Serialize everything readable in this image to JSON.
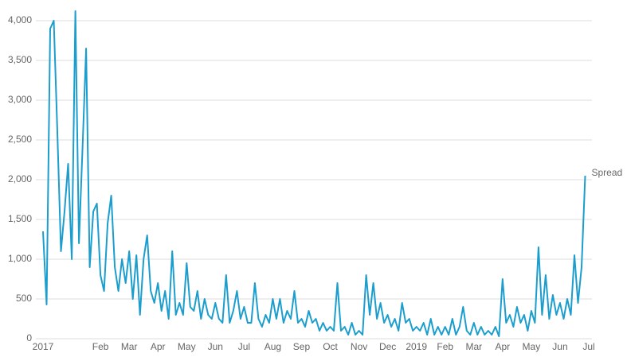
{
  "chart_data": {
    "type": "line",
    "categories": [
      "2017",
      null,
      null,
      null,
      null,
      null,
      null,
      null,
      null,
      null,
      null,
      null,
      null,
      null,
      null,
      null,
      "Feb",
      null,
      null,
      null,
      null,
      null,
      null,
      null,
      "Mar",
      null,
      null,
      null,
      null,
      null,
      null,
      null,
      "Apr",
      null,
      null,
      null,
      null,
      null,
      null,
      null,
      "May",
      null,
      null,
      null,
      null,
      null,
      null,
      null,
      "Jun",
      null,
      null,
      null,
      null,
      null,
      null,
      null,
      "Jul",
      null,
      null,
      null,
      null,
      null,
      null,
      null,
      "Aug",
      null,
      null,
      null,
      null,
      null,
      null,
      null,
      "Sep",
      null,
      null,
      null,
      null,
      null,
      null,
      null,
      "Oct",
      null,
      null,
      null,
      null,
      null,
      null,
      null,
      "Nov",
      null,
      null,
      null,
      null,
      null,
      null,
      null,
      "Dec",
      null,
      null,
      null,
      null,
      null,
      null,
      null,
      "2019",
      null,
      null,
      null,
      null,
      null,
      null,
      null,
      "Feb",
      null,
      null,
      null,
      null,
      null,
      null,
      null,
      "Mar",
      null,
      null,
      null,
      null,
      null,
      null,
      null,
      "Apr",
      null,
      null,
      null,
      null,
      null,
      null,
      null,
      "May",
      null,
      null,
      null,
      null,
      null,
      null,
      null,
      "Jun",
      null,
      null,
      null,
      null,
      null,
      null,
      null,
      "Jul"
    ],
    "series": [
      {
        "name": "Spread",
        "color": "#1b9ece",
        "values": [
          1350,
          430,
          3900,
          4000,
          2600,
          1100,
          1600,
          2200,
          1000,
          4120,
          1200,
          2400,
          3650,
          900,
          1600,
          1700,
          800,
          600,
          1450,
          1800,
          900,
          600,
          1000,
          700,
          1100,
          500,
          1050,
          300,
          1000,
          1300,
          600,
          450,
          700,
          350,
          600,
          250,
          1100,
          300,
          450,
          300,
          950,
          400,
          350,
          600,
          250,
          500,
          300,
          250,
          450,
          250,
          200,
          800,
          200,
          350,
          600,
          250,
          400,
          200,
          200,
          700,
          250,
          150,
          300,
          200,
          500,
          250,
          500,
          200,
          350,
          250,
          600,
          200,
          250,
          150,
          350,
          200,
          250,
          100,
          200,
          100,
          150,
          100,
          700,
          100,
          150,
          50,
          200,
          50,
          100,
          50,
          800,
          300,
          700,
          250,
          450,
          200,
          300,
          150,
          250,
          100,
          450,
          200,
          250,
          100,
          150,
          100,
          200,
          50,
          250,
          50,
          150,
          50,
          150,
          50,
          250,
          50,
          150,
          400,
          100,
          50,
          200,
          50,
          150,
          50,
          100,
          50,
          150,
          30,
          750,
          200,
          300,
          150,
          400,
          200,
          300,
          100,
          350,
          200,
          1150,
          300,
          800,
          250,
          550,
          300,
          450,
          250,
          500,
          300,
          1050,
          450,
          900,
          2050,
          null
        ]
      }
    ],
    "ylim": [
      0,
      4200
    ],
    "yticks": [
      0,
      500,
      {
        "value": 1000,
        "label": "1,000"
      },
      {
        "value": 1500,
        "label": "1,500"
      },
      {
        "value": 2000,
        "label": "2,000"
      },
      {
        "value": 2500,
        "label": "2,500"
      },
      {
        "value": 3000,
        "label": "3,000"
      },
      {
        "value": 3500,
        "label": "3,500"
      },
      {
        "value": 4000,
        "label": "4,000"
      }
    ],
    "grid": true
  }
}
